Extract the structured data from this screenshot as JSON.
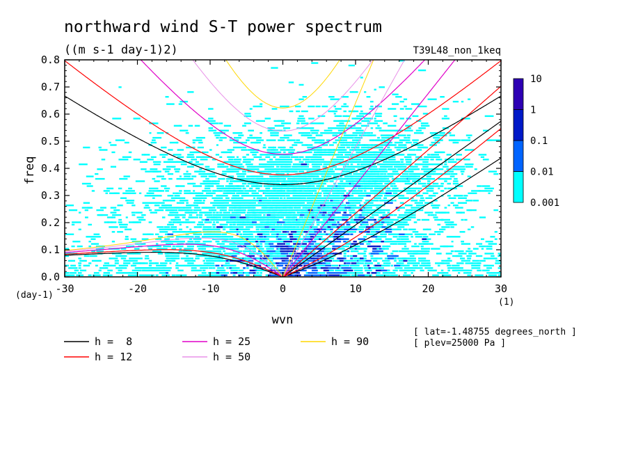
{
  "chart_data": {
    "type": "heatmap",
    "title": "northward wind S-T power spectrum",
    "units": "((m s-1 day-1)2)",
    "run_label": "T39L48_non_1keq",
    "xlabel": "wvn",
    "x_unit": "(1)",
    "ylabel": "freq",
    "y_unit": "(day-1)",
    "xlim": [
      -30,
      30
    ],
    "ylim": [
      0,
      0.8
    ],
    "x_ticks": [
      -30,
      -20,
      -10,
      0,
      10,
      20,
      30
    ],
    "y_ticks": [
      0.0,
      0.1,
      0.2,
      0.3,
      0.4,
      0.5,
      0.6,
      0.7,
      0.8
    ],
    "x_tick_labels": [
      "-30",
      "-20",
      "-10",
      "0",
      "10",
      "20",
      "30"
    ],
    "y_tick_labels": [
      "0.0",
      "0.1",
      "0.2",
      "0.3",
      "0.4",
      "0.5",
      "0.6",
      "0.7",
      "0.8"
    ],
    "colorbar": {
      "levels": [
        "0.001",
        "0.01",
        "0.1",
        "1",
        "10"
      ],
      "colors": [
        "#00ffff",
        "#0064ff",
        "#0019c8",
        "#2d00b4"
      ]
    },
    "series": [
      {
        "name": "h =  8",
        "h": 8,
        "color": "#000000",
        "type": "dispersion_curves"
      },
      {
        "name": "h = 12",
        "h": 12,
        "color": "#ff0000",
        "type": "dispersion_curves"
      },
      {
        "name": "h = 25",
        "h": 25,
        "color": "#e000c8",
        "type": "dispersion_curves"
      },
      {
        "name": "h = 50",
        "h": 50,
        "color": "#e890e8",
        "type": "dispersion_curves"
      },
      {
        "name": "h = 90",
        "h": 90,
        "color": "#ffd700",
        "type": "dispersion_curves"
      }
    ],
    "annotations": [
      "[ lat=-1.48755 degrees_north ]",
      "[ plev=25000 Pa ]"
    ]
  }
}
